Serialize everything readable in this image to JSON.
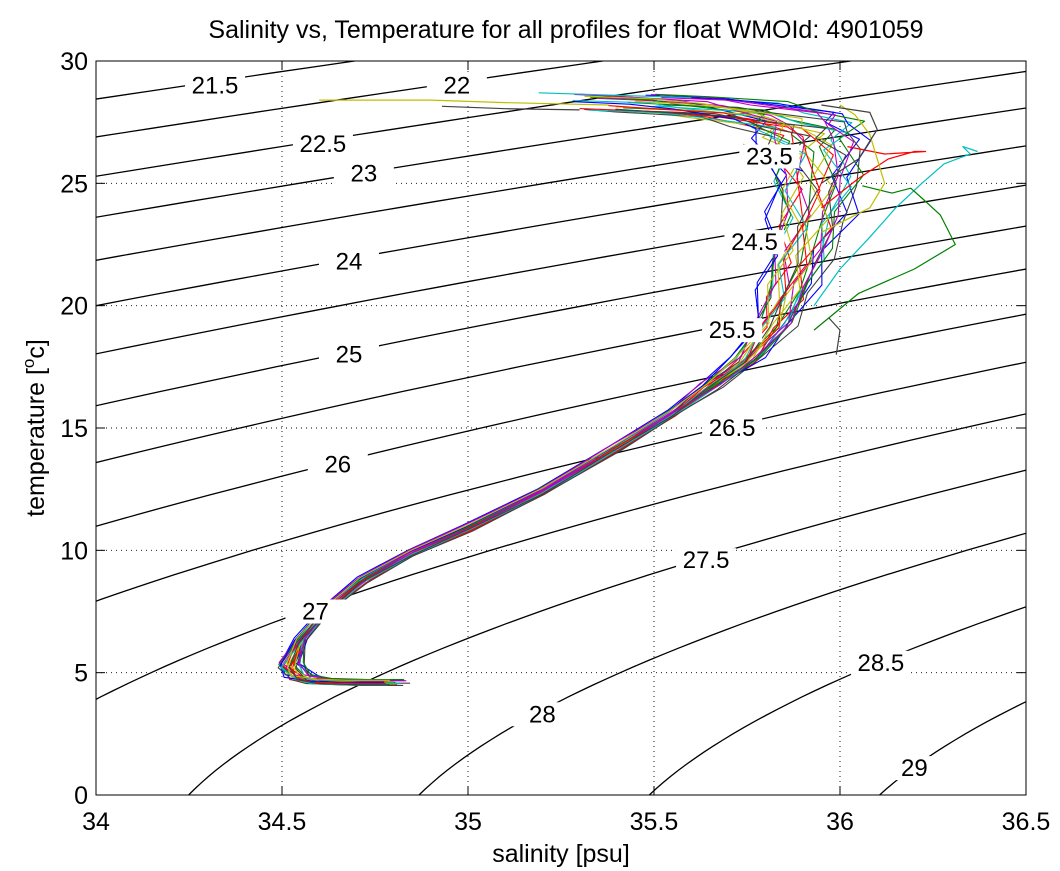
{
  "chart_data": {
    "type": "line",
    "title": "Salinity vs, Temperature for all profiles for float WMOId: 4901059",
    "xlabel": "salinity [psu]",
    "ylabel": {
      "main": "temperature [",
      "sup": "o",
      "rest": "c]"
    },
    "xlim": [
      34,
      36.5
    ],
    "ylim": [
      0,
      30
    ],
    "x_ticks": [
      34,
      34.5,
      35,
      35.5,
      36,
      36.5
    ],
    "x_tick_labels": [
      "34",
      "34.5",
      "35",
      "35.5",
      "36",
      "36.5"
    ],
    "y_ticks": [
      0,
      5,
      10,
      15,
      20,
      25,
      30
    ],
    "y_tick_labels": [
      "0",
      "5",
      "10",
      "15",
      "20",
      "25",
      "30"
    ],
    "grid": "dotted",
    "density_contours": {
      "color": "#000000",
      "levels": [
        21.5,
        22,
        22.5,
        23,
        23.5,
        24,
        24.5,
        25,
        25.5,
        26,
        26.5,
        27,
        27.5,
        28,
        28.5,
        29
      ],
      "labels": [
        {
          "text": "21.5",
          "s": 34.32,
          "t": 29.0
        },
        {
          "text": "22",
          "s": 34.97,
          "t": 29.0
        },
        {
          "text": "22.5",
          "s": 34.61,
          "t": 26.6
        },
        {
          "text": "23",
          "s": 34.72,
          "t": 25.4
        },
        {
          "text": "23.5",
          "s": 35.81,
          "t": 26.1
        },
        {
          "text": "24",
          "s": 34.68,
          "t": 21.8
        },
        {
          "text": "24.5",
          "s": 35.77,
          "t": 22.6
        },
        {
          "text": "25",
          "s": 34.68,
          "t": 18.0
        },
        {
          "text": "25.5",
          "s": 35.71,
          "t": 19.0
        },
        {
          "text": "26",
          "s": 34.65,
          "t": 13.5
        },
        {
          "text": "26.5",
          "s": 35.71,
          "t": 15.0
        },
        {
          "text": "27",
          "s": 34.59,
          "t": 7.5
        },
        {
          "text": "27.5",
          "s": 35.64,
          "t": 9.6
        },
        {
          "text": "28",
          "s": 35.2,
          "t": 3.3
        },
        {
          "text": "28.5",
          "s": 36.11,
          "t": 5.4
        },
        {
          "text": "29",
          "s": 36.2,
          "t": 1.1
        }
      ]
    },
    "profile_colors": [
      "#0000ff",
      "#008000",
      "#ff0000",
      "#00bfbf",
      "#bf00bf",
      "#bfbf00",
      "#404040"
    ],
    "profile_count": 28,
    "mean_profile": {
      "s": [
        34.8,
        34.7,
        34.6,
        34.55,
        34.52,
        34.55,
        34.62,
        34.72,
        34.85,
        35.0,
        35.2,
        35.4,
        35.55,
        35.65,
        35.75,
        35.82,
        35.86,
        35.89,
        35.92,
        35.93,
        35.92,
        35.9,
        35.85,
        35.7,
        35.55,
        35.4
      ],
      "t": [
        4.6,
        4.6,
        4.65,
        4.8,
        5.3,
        6.3,
        7.6,
        8.8,
        9.9,
        10.9,
        12.4,
        14.2,
        15.6,
        16.7,
        17.8,
        19.2,
        20.6,
        22.0,
        23.5,
        25.0,
        26.5,
        27.2,
        27.6,
        28.0,
        28.2,
        28.3
      ]
    },
    "surface_tails": [
      {
        "color": "#bfbf00",
        "s": [
          35.38,
          35.1,
          34.9,
          34.75,
          34.6
        ],
        "t": [
          28.2,
          28.3,
          28.4,
          28.4,
          28.4
        ]
      },
      {
        "color": "#404040",
        "s": [
          35.3,
          35.1,
          34.93
        ],
        "t": [
          28.0,
          28.05,
          28.15
        ]
      },
      {
        "color": "#00bfbf",
        "s": [
          35.6,
          35.4,
          35.19
        ],
        "t": [
          28.5,
          28.6,
          28.7
        ]
      }
    ],
    "high_salinity_excursions": [
      {
        "color": "#00bfbf",
        "s": [
          35.93,
          36.0,
          36.08,
          36.15,
          36.22,
          36.28,
          36.35,
          36.33,
          36.37
        ],
        "t": [
          20.0,
          21.5,
          22.8,
          24.0,
          25.0,
          25.8,
          26.2,
          26.5,
          26.3
        ]
      },
      {
        "color": "#008000",
        "s": [
          35.93,
          36.05,
          36.2,
          36.31,
          36.27,
          36.22,
          36.19,
          36.14,
          36.06
        ],
        "t": [
          19.0,
          20.5,
          21.5,
          22.5,
          23.7,
          24.4,
          24.8,
          24.6,
          24.9
        ]
      },
      {
        "color": "#ff0000",
        "s": [
          35.95,
          36.05,
          36.13,
          36.2,
          36.23,
          36.12,
          36.02
        ],
        "t": [
          24.0,
          25.2,
          26.0,
          26.3,
          26.3,
          26.2,
          26.5
        ]
      },
      {
        "color": "#bfbf00",
        "s": [
          35.95,
          36.08,
          36.12,
          36.1,
          36.08,
          36.04,
          36.0
        ],
        "t": [
          23.0,
          24.0,
          25.0,
          26.0,
          27.0,
          27.8,
          28.2
        ]
      },
      {
        "color": "#0000ff",
        "s": [
          35.9,
          35.78,
          35.74
        ],
        "t": [
          25.5,
          26.2,
          26.6
        ]
      },
      {
        "color": "#404040",
        "s": [
          35.95,
          36.05,
          36.1,
          36.08,
          35.95
        ],
        "t": [
          25.0,
          26.0,
          27.2,
          27.9,
          28.2
        ]
      },
      {
        "color": "#404040",
        "s": [
          35.97,
          36.0,
          35.99
        ],
        "t": [
          19.5,
          19.0,
          18.0
        ]
      }
    ]
  }
}
